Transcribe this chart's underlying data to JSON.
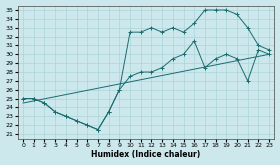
{
  "xlabel": "Humidex (Indice chaleur)",
  "bg_color": "#cce8ec",
  "grid_color": "#aad4d8",
  "line_color": "#1a6b6e",
  "xlim": [
    -0.5,
    23.5
  ],
  "ylim": [
    20.5,
    35.5
  ],
  "yticks": [
    21,
    22,
    23,
    24,
    25,
    26,
    27,
    28,
    29,
    30,
    31,
    32,
    33,
    34,
    35
  ],
  "xticks": [
    0,
    1,
    2,
    3,
    4,
    5,
    6,
    7,
    8,
    9,
    10,
    11,
    12,
    13,
    14,
    15,
    16,
    17,
    18,
    19,
    20,
    21,
    22,
    23
  ],
  "line1_x": [
    0,
    1,
    2,
    3,
    4,
    5,
    6,
    7,
    8,
    9,
    10,
    11,
    12,
    13,
    14,
    15,
    16,
    17,
    18,
    19,
    20,
    21,
    22,
    23
  ],
  "line1_y": [
    25.0,
    25.0,
    24.5,
    23.5,
    23.0,
    22.5,
    22.0,
    21.5,
    23.5,
    26.0,
    27.5,
    28.0,
    28.0,
    28.5,
    29.5,
    30.0,
    31.5,
    28.5,
    29.5,
    30.0,
    29.5,
    27.0,
    30.5,
    30.0
  ],
  "line2_x": [
    0,
    1,
    2,
    3,
    4,
    5,
    6,
    7,
    8,
    9,
    10,
    11,
    12,
    13,
    14,
    15,
    16,
    17,
    18,
    19,
    20,
    21,
    22,
    23
  ],
  "line2_y": [
    25.0,
    25.0,
    24.5,
    23.5,
    23.0,
    22.5,
    22.0,
    21.5,
    23.5,
    26.0,
    32.5,
    32.5,
    33.0,
    32.5,
    33.0,
    32.5,
    33.5,
    35.0,
    35.0,
    35.0,
    34.5,
    33.0,
    31.0,
    30.5
  ],
  "line3_x": [
    0,
    23
  ],
  "line3_y": [
    24.5,
    30.0
  ]
}
